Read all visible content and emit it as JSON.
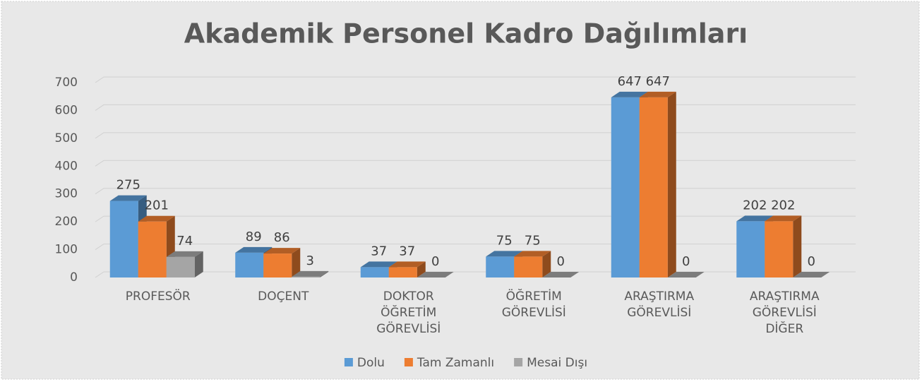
{
  "chart_data": {
    "type": "bar3d",
    "title": "Akademik Personel Kadro Dağılımları",
    "categories": [
      "PROFESÖR",
      "DOÇENT",
      "DOKTOR ÖĞRETİM GÖREVLİSİ",
      "ÖĞRETİM GÖREVLİSİ",
      "ARAŞTIRMA GÖREVLİSİ",
      "ARAŞTIRMA GÖREVLİSİ DİĞER"
    ],
    "series": [
      {
        "name": "Dolu",
        "color": "#5b9bd5",
        "values": [
          275,
          89,
          37,
          75,
          647,
          202
        ]
      },
      {
        "name": "Tam Zamanlı",
        "color": "#ed7d31",
        "values": [
          201,
          86,
          37,
          75,
          647,
          202
        ]
      },
      {
        "name": "Mesai Dışı",
        "color": "#a5a5a5",
        "values": [
          74,
          3,
          0,
          0,
          0,
          0
        ]
      }
    ],
    "ylim": [
      0,
      700
    ],
    "yticks": [
      0,
      100,
      200,
      300,
      400,
      500,
      600,
      700
    ],
    "grid": true,
    "legend": "bottom"
  }
}
